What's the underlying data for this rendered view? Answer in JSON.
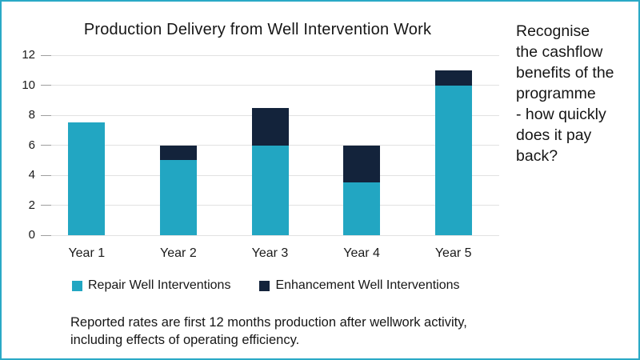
{
  "chart_data": {
    "type": "bar",
    "stacked": true,
    "title": "Production Delivery from Well Intervention Work",
    "categories": [
      "Year 1",
      "Year 2",
      "Year 3",
      "Year 4",
      "Year 5"
    ],
    "series": [
      {
        "name": "Repair Well Interventions",
        "color": "#22A6C2",
        "values": [
          7.5,
          5,
          6,
          3.5,
          10
        ]
      },
      {
        "name": "Enhancement Well Interventions",
        "color": "#13233B",
        "values": [
          0,
          1,
          2.5,
          2.5,
          1
        ]
      }
    ],
    "totals": [
      7.5,
      6,
      8.5,
      6,
      11
    ],
    "xlabel": "",
    "ylabel": "",
    "ylim": [
      0,
      12
    ],
    "ytick_step": 2,
    "yticks": [
      0,
      2,
      4,
      6,
      8,
      10,
      12
    ],
    "grid": true,
    "legend_position": "bottom"
  },
  "annotation": {
    "text": "Recognise\nthe cashflow\nbenefits of the\nprogramme\n- how quickly\ndoes it pay\nback?"
  },
  "footnote": {
    "text": "Reported rates are first 12 months production after wellwork activity,\nincluding effects of operating efficiency."
  },
  "colors": {
    "accent_teal": "#22A6C2",
    "navy": "#13233B",
    "frame_border": "#2AA9C6",
    "gridline": "#e2e2e2",
    "text": "#161616"
  }
}
